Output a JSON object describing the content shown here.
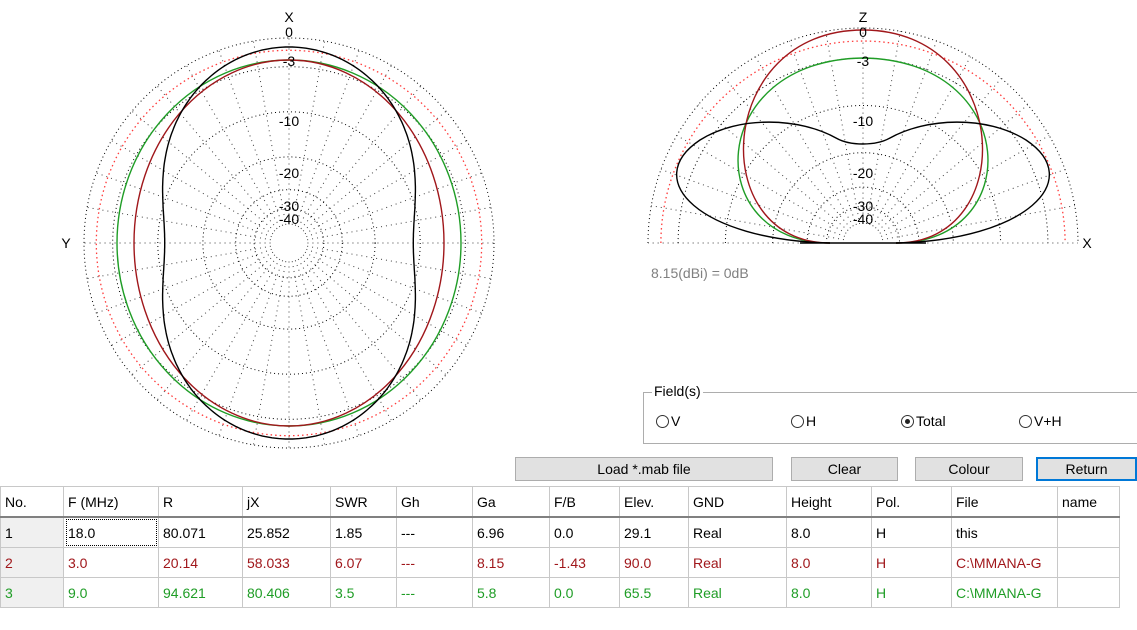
{
  "horizontal_plot": {
    "axis_top": "X",
    "axis_left": "Y",
    "ring_labels": [
      "0",
      "-3",
      "-10",
      "-20",
      "-30",
      "-40"
    ]
  },
  "vertical_plot": {
    "axis_top": "Z",
    "axis_right": "X",
    "ring_labels": [
      "0",
      "-3",
      "-10",
      "-20",
      "-30",
      "-40"
    ]
  },
  "reference_note": "8.15(dBi) = 0dB",
  "fields": {
    "legend": "Field(s)",
    "options": [
      {
        "label": "V",
        "checked": false
      },
      {
        "label": "H",
        "checked": false
      },
      {
        "label": "Total",
        "checked": true
      },
      {
        "label": "V+H",
        "checked": false
      }
    ]
  },
  "buttons": {
    "load": "Load *.mab file",
    "clear": "Clear",
    "colour": "Colour",
    "return": "Return"
  },
  "table": {
    "headers": [
      "No.",
      "F (MHz)",
      "R",
      "jX",
      "SWR",
      "Gh",
      "Ga",
      "F/B",
      "Elev.",
      "GND",
      "Height",
      "Pol.",
      "File",
      "name"
    ],
    "rows": [
      {
        "color": "#000000",
        "cells": [
          "1",
          "18.0",
          "80.071",
          "25.852",
          "1.85",
          "---",
          "6.96",
          "0.0",
          "29.1",
          "Real",
          "8.0",
          "H",
          "this",
          ""
        ]
      },
      {
        "color": "#a0171b",
        "cells": [
          "2",
          "3.0",
          "20.14",
          "58.033",
          "6.07",
          "---",
          "8.15",
          "-1.43",
          "90.0",
          "Real",
          "8.0",
          "H",
          "C:\\MMANA-G",
          ""
        ]
      },
      {
        "color": "#1f9d26",
        "cells": [
          "3",
          "9.0",
          "94.621",
          "80.406",
          "3.5",
          "---",
          "5.8",
          "0.0",
          "65.5",
          "Real",
          "8.0",
          "H",
          "C:\\MMANA-G",
          ""
        ]
      }
    ]
  },
  "colors": {
    "trace1": "#000000",
    "trace2": "#a0171b",
    "trace3": "#1f9d26",
    "reference_ring": "#ff3b3b",
    "grid": "#000000",
    "note_text": "#808080",
    "default_button_border": "#0078d7"
  }
}
